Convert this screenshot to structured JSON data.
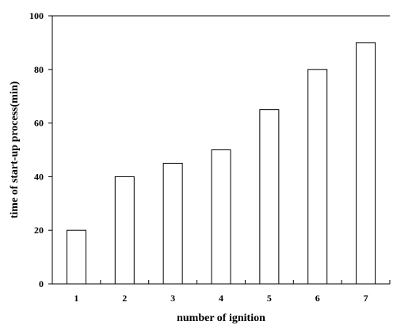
{
  "chart_data": {
    "type": "bar",
    "categories": [
      "1",
      "2",
      "3",
      "4",
      "5",
      "6",
      "7"
    ],
    "values": [
      20,
      40,
      45,
      50,
      65,
      80,
      90
    ],
    "xlabel": "number of ignition",
    "ylabel": "time of start-up process(min)",
    "ylim": [
      0,
      100
    ],
    "yticks": [
      0,
      20,
      40,
      60,
      80,
      100
    ],
    "grid": false,
    "legend": "none",
    "colors": {
      "bar_fill": "#ffffff",
      "bar_stroke": "#000000",
      "axis": "#000000"
    }
  }
}
